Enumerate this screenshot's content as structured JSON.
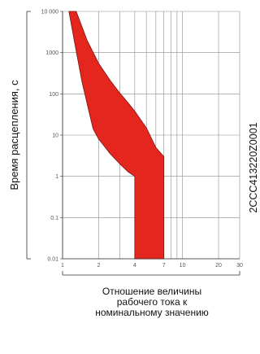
{
  "chart_data": {
    "type": "area",
    "title": "",
    "ylabel": "Время расцепления, с",
    "xlabel": [
      "Отношение величины",
      "рабочего тока к",
      "номинальному значению"
    ],
    "xscale": "log",
    "yscale": "log",
    "xlim": [
      1,
      30
    ],
    "ylim": [
      0.01,
      10000
    ],
    "x_ticks": [
      1,
      2,
      3,
      4,
      5,
      6,
      7,
      8,
      9,
      10,
      20,
      30
    ],
    "x_tick_labels": [
      "1",
      "2",
      "",
      "4",
      "",
      "",
      "7",
      "",
      "",
      "10",
      "20",
      "30"
    ],
    "y_ticks": [
      0.01,
      0.1,
      1,
      10,
      100,
      1000,
      10000
    ],
    "y_tick_labels": [
      "0.01",
      "0.1",
      "1",
      "10",
      "100",
      "1000",
      "10 000"
    ],
    "grid": true,
    "fill_color": "#e5261f",
    "band_upper": {
      "x": [
        1.13,
        1.3,
        1.6,
        2.0,
        2.5,
        3.0,
        3.5,
        4.0,
        5.0,
        6.0,
        7.0,
        7.0
      ],
      "y": [
        10000,
        10000,
        2000,
        550,
        210,
        105,
        62,
        38,
        15,
        5,
        3,
        0.01
      ]
    },
    "band_lower": {
      "x": [
        1.13,
        1.25,
        1.45,
        1.65,
        1.8,
        2.0,
        2.5,
        3.0,
        3.5,
        4.0,
        4.0,
        4.1
      ],
      "y": [
        10000,
        2000,
        200,
        40,
        14,
        8,
        3.5,
        2,
        1.3,
        1,
        0.01,
        0.01
      ]
    },
    "side_label": "2CCC413220Z0001"
  }
}
